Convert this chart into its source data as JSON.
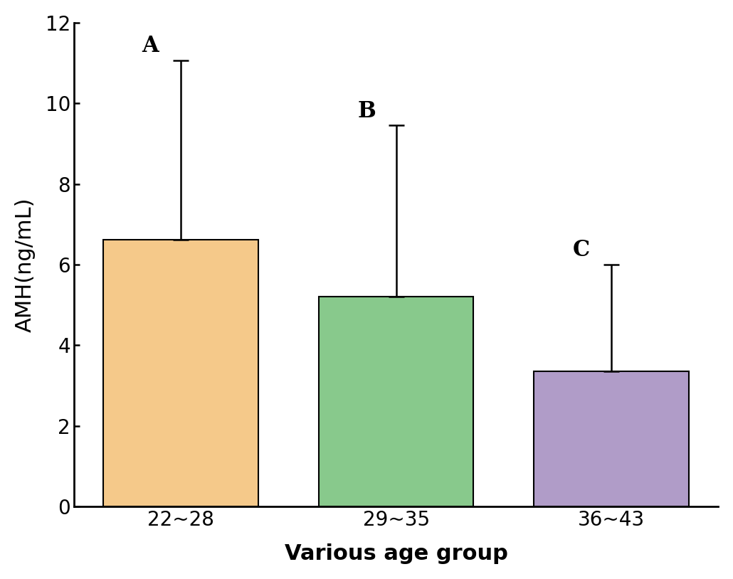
{
  "categories": [
    "22~28",
    "29~35",
    "36~43"
  ],
  "values": [
    6.62,
    5.2,
    3.35
  ],
  "errors_upper": [
    4.45,
    4.25,
    2.65
  ],
  "errors_lower": [
    0.0,
    0.0,
    0.0
  ],
  "bar_colors": [
    "#F5C98A",
    "#88C98C",
    "#B09CC8"
  ],
  "labels": [
    "A",
    "B",
    "C"
  ],
  "ylabel": "AMH(ng/mL)",
  "xlabel": "Various age group",
  "ylim": [
    0,
    12
  ],
  "yticks": [
    0,
    2,
    4,
    6,
    8,
    10,
    12
  ],
  "label_fontsize": 22,
  "tick_fontsize": 20,
  "annotation_fontsize": 22,
  "bar_width": 0.72,
  "background_color": "#ffffff",
  "capsize": 8,
  "error_linewidth": 1.8,
  "spine_linewidth": 2.0
}
